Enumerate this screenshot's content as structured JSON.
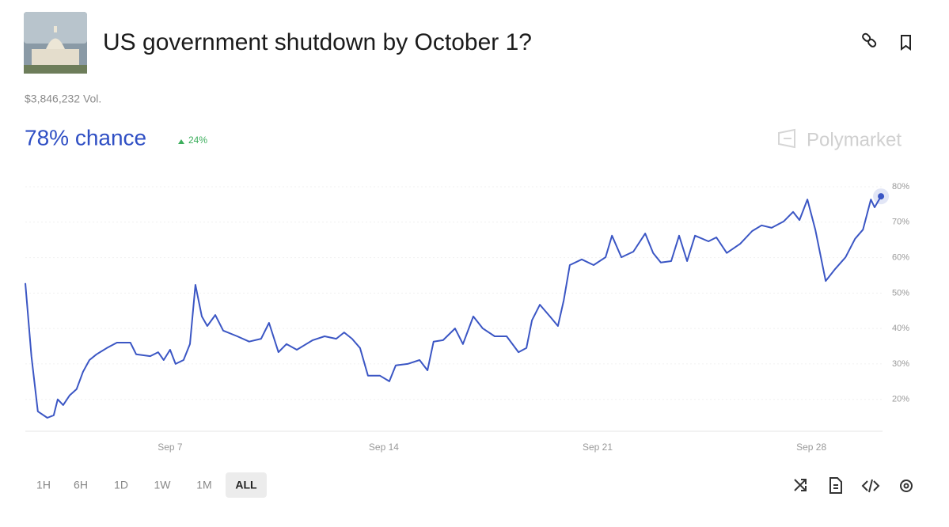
{
  "header": {
    "title": "US government shutdown by October 1?",
    "volume": "$3,846,232 Vol.",
    "chance": "78% chance",
    "change": "24%",
    "brand": "Polymarket"
  },
  "chart_data": {
    "type": "line",
    "color": "#3b56c4",
    "x": [
      2.26,
      2.46,
      2.67,
      2.98,
      3.19,
      3.32,
      3.5,
      3.71,
      3.94,
      4.15,
      4.36,
      4.59,
      4.93,
      5.26,
      5.7,
      5.89,
      6.35,
      6.61,
      6.79,
      7.0,
      7.18,
      7.44,
      7.65,
      7.83,
      8.04,
      8.22,
      8.48,
      8.74,
      9.2,
      9.59,
      9.98,
      10.24,
      10.55,
      10.81,
      11.15,
      11.67,
      12.06,
      12.44,
      12.7,
      12.96,
      13.22,
      13.48,
      13.87,
      14.18,
      14.39,
      14.78,
      15.17,
      15.43,
      15.63,
      15.94,
      16.33,
      16.59,
      16.93,
      17.24,
      17.63,
      18.02,
      18.41,
      18.67,
      18.85,
      19.11,
      19.44,
      19.7,
      19.89,
      20.09,
      20.48,
      20.87,
      21.26,
      21.47,
      21.78,
      22.17,
      22.56,
      22.82,
      23.07,
      23.41,
      23.67,
      23.93,
      24.19,
      24.63,
      24.89,
      25.23,
      25.67,
      26.06,
      26.37,
      26.7,
      27.09,
      27.4,
      27.61,
      27.87,
      28.13,
      28.47,
      28.78,
      29.12,
      29.43,
      29.69,
      29.95,
      30.07,
      30.28
    ],
    "values": [
      52.8,
      32.2,
      16.6,
      14.8,
      15.5,
      20.0,
      18.4,
      21.1,
      22.9,
      27.8,
      31.1,
      32.7,
      34.5,
      36.0,
      36.0,
      32.7,
      32.2,
      33.3,
      31.1,
      34.0,
      30.0,
      31.1,
      35.6,
      52.3,
      43.4,
      40.7,
      43.8,
      39.4,
      37.8,
      36.3,
      37.1,
      41.6,
      33.3,
      35.6,
      34.0,
      36.7,
      37.8,
      37.1,
      38.9,
      37.1,
      34.5,
      26.7,
      26.7,
      25.1,
      29.6,
      30.0,
      31.1,
      28.2,
      36.3,
      36.7,
      40.0,
      35.6,
      43.4,
      40.0,
      37.8,
      37.8,
      33.3,
      34.5,
      42.3,
      46.7,
      43.4,
      40.7,
      47.9,
      57.9,
      59.5,
      57.9,
      60.1,
      66.2,
      60.1,
      61.7,
      66.8,
      61.3,
      58.6,
      59.0,
      66.2,
      59.0,
      66.2,
      64.6,
      65.7,
      61.3,
      63.9,
      67.5,
      69.1,
      68.4,
      70.2,
      72.9,
      70.6,
      76.4,
      67.9,
      53.4,
      56.8,
      60.1,
      65.3,
      67.9,
      76.4,
      74.2,
      77.3
    ],
    "xlim": [
      2.26,
      30.33
    ],
    "xticks": [
      {
        "value": 7,
        "label": "Sep 7"
      },
      {
        "value": 14,
        "label": "Sep 14"
      },
      {
        "value": 21,
        "label": "Sep 21"
      },
      {
        "value": 28,
        "label": "Sep 28"
      }
    ],
    "ylim": [
      11,
      80
    ],
    "yticks": [
      {
        "value": 20,
        "label": "20%"
      },
      {
        "value": 30,
        "label": "30%"
      },
      {
        "value": 40,
        "label": "40%"
      },
      {
        "value": 50,
        "label": "50%"
      },
      {
        "value": 60,
        "label": "60%"
      },
      {
        "value": 70,
        "label": "70%"
      },
      {
        "value": 80,
        "label": "80%"
      }
    ],
    "grid": true
  },
  "range_buttons": [
    "1H",
    "6H",
    "1D",
    "1W",
    "1M",
    "ALL"
  ]
}
